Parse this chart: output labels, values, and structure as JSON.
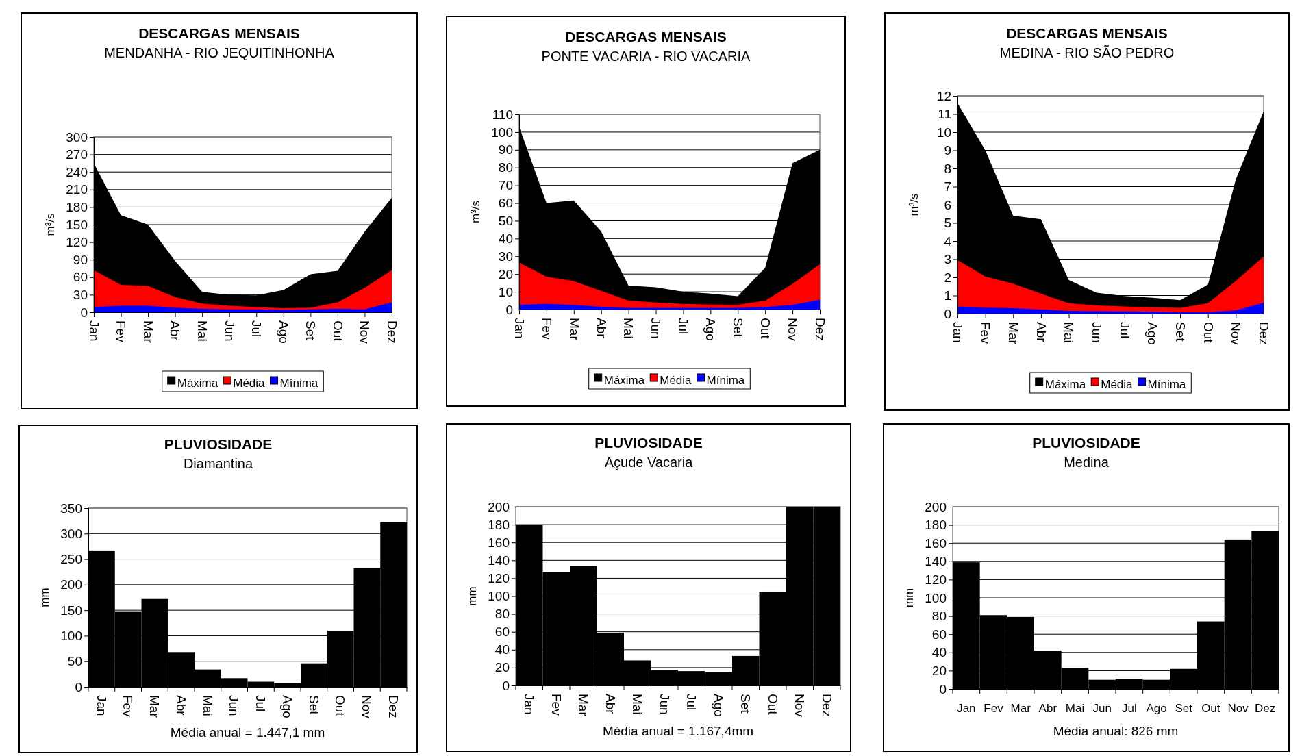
{
  "chart_data": [
    {
      "type": "area",
      "title": "DESCARGAS  MENSAIS",
      "subtitle": "MENDANHA -  RIO JEQUITINHONHA",
      "ylabel": "m³/s",
      "categories": [
        "Jan",
        "Fev",
        "Mar",
        "Abr",
        "Mai",
        "Jun",
        "Jul",
        "Ago",
        "Set",
        "Out",
        "Nov",
        "Dez"
      ],
      "ylim": [
        0,
        300
      ],
      "yticks": [
        0,
        30,
        60,
        90,
        120,
        150,
        180,
        210,
        240,
        270,
        300
      ],
      "grid": "y",
      "legend": "bottom",
      "series": [
        {
          "name": "Máxima",
          "color": "#000000",
          "values": [
            255,
            166,
            150,
            88,
            35,
            30,
            29,
            38,
            65,
            71,
            138,
            196
          ]
        },
        {
          "name": "Média",
          "color": "#ff0000",
          "values": [
            72,
            47,
            45,
            26,
            15,
            11,
            9,
            7,
            8,
            17,
            42,
            72
          ]
        },
        {
          "name": "Mínima",
          "color": "#0000ff",
          "values": [
            9,
            11,
            11,
            8,
            6,
            5,
            5,
            4,
            5,
            6,
            5,
            17
          ]
        }
      ]
    },
    {
      "type": "area",
      "title": "DESCARGAS MENSAIS",
      "subtitle": "PONTE VACARIA - RIO VACARIA",
      "ylabel": "m³/s",
      "categories": [
        "Jan",
        "Fev",
        "Mar",
        "Abr",
        "Mai",
        "Jun",
        "Jul",
        "Ago",
        "Set",
        "Out",
        "Nov",
        "Dez"
      ],
      "ylim": [
        0,
        110
      ],
      "yticks": [
        0,
        10,
        20,
        30,
        40,
        50,
        60,
        70,
        80,
        90,
        100,
        110
      ],
      "grid": "y",
      "legend": "bottom",
      "series": [
        {
          "name": "Máxima",
          "color": "#000000",
          "values": [
            103,
            60,
            61.5,
            44,
            13.5,
            12.5,
            10,
            9,
            7.5,
            23.5,
            82.5,
            90
          ]
        },
        {
          "name": "Média",
          "color": "#ff0000",
          "values": [
            26.5,
            18.5,
            16,
            10.5,
            5,
            4,
            3.2,
            2.8,
            2.7,
            5,
            14.5,
            25.5
          ]
        },
        {
          "name": "Mínima",
          "color": "#0000ff",
          "values": [
            2.7,
            3.2,
            2.6,
            1.5,
            1,
            1,
            1,
            1,
            1,
            1.4,
            2.6,
            5.5
          ]
        }
      ]
    },
    {
      "type": "area",
      "title": "DESCARGAS MENSAIS",
      "subtitle": "MEDINA -  RIO SÃO PEDRO",
      "ylabel": "m³/s",
      "categories": [
        "Jan",
        "Fev",
        "Mar",
        "Abr",
        "Mai",
        "Jun",
        "Jul",
        "Ago",
        "Set",
        "Out",
        "Nov",
        "Dez"
      ],
      "ylim": [
        0,
        12
      ],
      "yticks": [
        0,
        1,
        2,
        3,
        4,
        5,
        6,
        7,
        8,
        9,
        10,
        11,
        12
      ],
      "grid": "y",
      "legend": "bottom",
      "series": [
        {
          "name": "Máxima",
          "color": "#000000",
          "values": [
            11.6,
            9,
            5.4,
            5.2,
            1.85,
            1.15,
            0.97,
            0.88,
            0.75,
            1.6,
            7.4,
            11.15
          ]
        },
        {
          "name": "Média",
          "color": "#ff0000",
          "values": [
            2.95,
            2.05,
            1.65,
            1.1,
            0.58,
            0.45,
            0.4,
            0.35,
            0.32,
            0.58,
            1.8,
            3.15
          ]
        },
        {
          "name": "Mínima",
          "color": "#0000ff",
          "values": [
            0.4,
            0.33,
            0.3,
            0.23,
            0.15,
            0.13,
            0.12,
            0.1,
            0.08,
            0.08,
            0.18,
            0.6
          ]
        }
      ]
    },
    {
      "type": "bar",
      "title": "PLUVIOSIDADE",
      "subtitle": "Diamantina",
      "ylabel": "mm",
      "categories": [
        "Jan",
        "Fev",
        "Mar",
        "Abr",
        "Mai",
        "Jun",
        "Jul",
        "Ago",
        "Set",
        "Out",
        "Nov",
        "Dez"
      ],
      "ylim": [
        0,
        350
      ],
      "yticks": [
        0,
        50,
        100,
        150,
        200,
        250,
        300,
        350
      ],
      "grid": "y",
      "color": "#000000",
      "values": [
        267,
        148,
        172,
        68,
        34,
        17,
        10,
        8,
        46,
        110,
        232,
        322
      ],
      "annotations": [
        "Média anual = 1.447,1 mm"
      ]
    },
    {
      "type": "bar",
      "title": "PLUVIOSIDADE",
      "subtitle": "Açude Vacaria",
      "ylabel": "mm",
      "categories": [
        "Jan",
        "Fev",
        "Mar",
        "Abr",
        "Mai",
        "Jun",
        "Jul",
        "Ago",
        "Set",
        "Out",
        "Nov",
        "Dez"
      ],
      "ylim": [
        0,
        200
      ],
      "yticks": [
        0,
        20,
        40,
        60,
        80,
        100,
        120,
        140,
        160,
        180,
        200
      ],
      "grid": "y",
      "color": "#000000",
      "values": [
        180,
        127,
        134,
        59,
        28,
        17,
        16,
        15,
        33,
        105,
        200,
        200
      ],
      "annotations": [
        "Média anual = 1.167,4mm"
      ]
    },
    {
      "type": "bar",
      "title": "PLUVIOSIDADE",
      "subtitle": "Medina",
      "ylabel": "mm",
      "categories": [
        "Jan",
        "Fev",
        "Mar",
        "Abr",
        "Mai",
        "Jun",
        "Jul",
        "Ago",
        "Set",
        "Out",
        "Nov",
        "Dez"
      ],
      "ylim": [
        0,
        200
      ],
      "yticks": [
        0,
        20,
        40,
        60,
        80,
        100,
        120,
        140,
        160,
        180,
        200
      ],
      "grid": "y",
      "color": "#000000",
      "values": [
        139,
        81,
        79,
        42,
        23,
        10,
        11,
        10,
        22,
        74,
        164,
        173
      ],
      "annotations": [
        "Média anual: 826 mm"
      ]
    }
  ]
}
